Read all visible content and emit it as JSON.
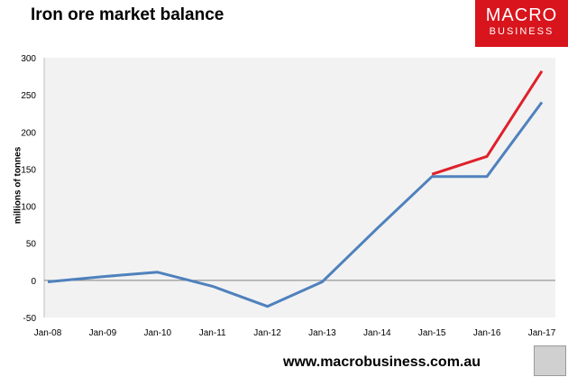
{
  "header": {
    "title": "Iron ore market balance"
  },
  "logo": {
    "line1": "MACRO",
    "line2": "BUSINESS",
    "color": "#d8141c"
  },
  "footer": {
    "url": "www.macrobusiness.com.au",
    "icon": "wolf-emblem-icon"
  },
  "chart_data": {
    "type": "line",
    "title": "Iron ore market balance",
    "xlabel": "",
    "ylabel": "millions of tonnes",
    "categories": [
      "Jan-08",
      "Jan-09",
      "Jan-10",
      "Jan-11",
      "Jan-12",
      "Jan-13",
      "Jan-14",
      "Jan-15",
      "Jan-16",
      "Jan-17"
    ],
    "ylim": [
      -50,
      300
    ],
    "yticks": [
      "-50",
      "0",
      "50",
      "100",
      "150",
      "200",
      "250",
      "300"
    ],
    "grid": false,
    "legend": "none",
    "background": "#f2f2f2",
    "series": [
      {
        "color": "#4f81bd",
        "values": [
          -2,
          5,
          11,
          -8,
          -35,
          -2,
          70,
          140,
          140,
          240
        ]
      },
      {
        "color": "#e0202a",
        "values": [
          null,
          null,
          null,
          null,
          null,
          null,
          null,
          143,
          167,
          282
        ]
      }
    ]
  }
}
